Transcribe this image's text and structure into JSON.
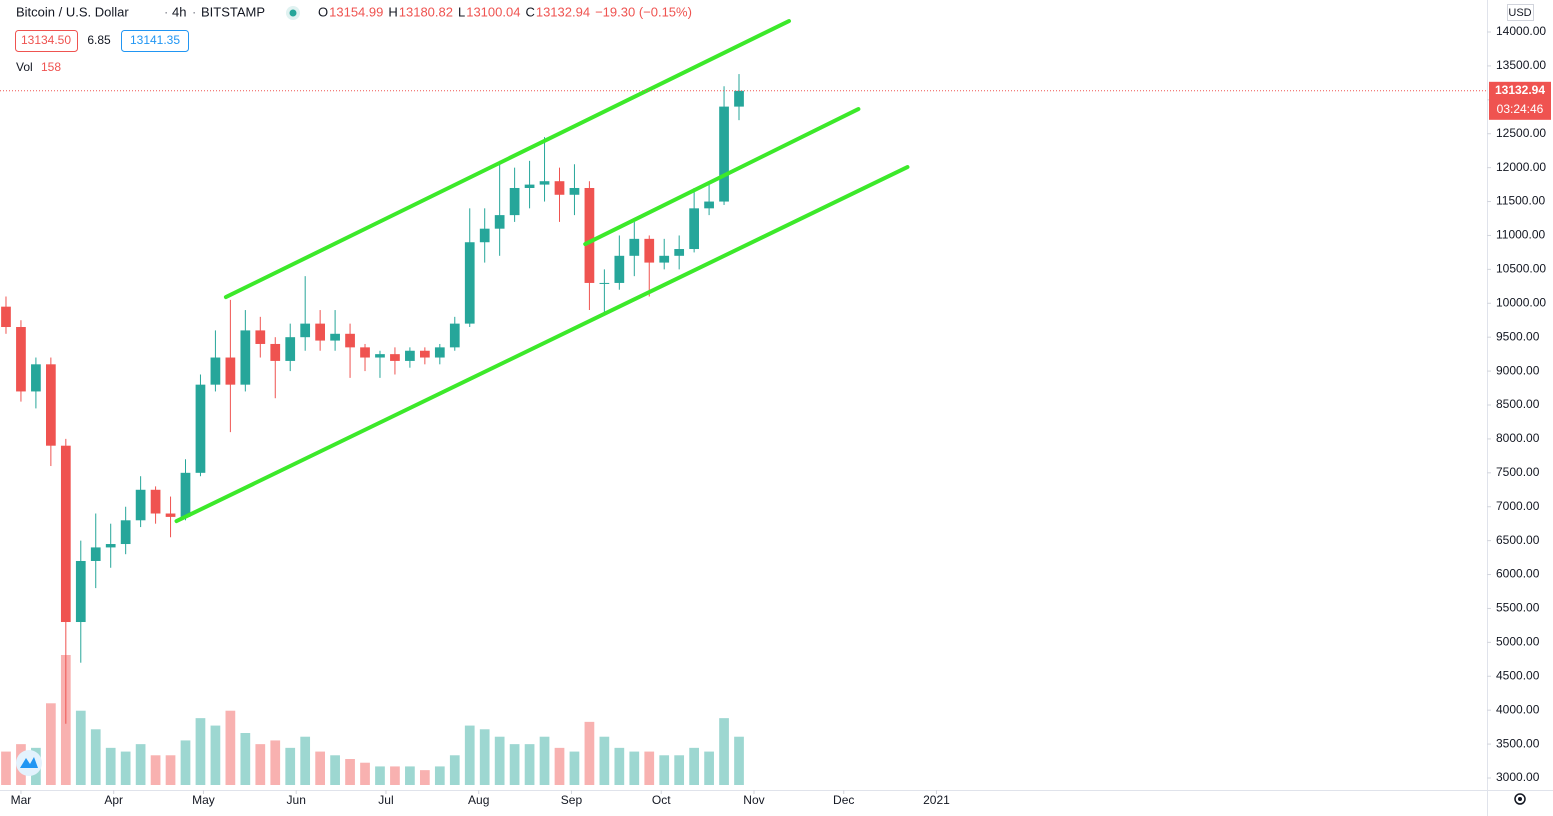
{
  "header": {
    "symbol": "Bitcoin / U.S. Dollar",
    "interval": "4h",
    "exchange": "BITSTAMP",
    "ohlc": [
      {
        "label": "O",
        "value": "13154.99"
      },
      {
        "label": "H",
        "value": "13180.82"
      },
      {
        "label": "L",
        "value": "13100.04"
      },
      {
        "label": "C",
        "value": "13132.94"
      }
    ],
    "change": "−19.30 (−0.15%)",
    "bid": "13134.50",
    "spread": "6.85",
    "ask": "13141.35",
    "volume_label": "Vol",
    "volume_value": "158",
    "currency": "USD",
    "last_price": "13132.94",
    "countdown": "03:24:46"
  },
  "chart_data": {
    "type": "candlestick",
    "x": [
      -5,
      0,
      5,
      10,
      15,
      20,
      25,
      30,
      35,
      40,
      45,
      50,
      55,
      60,
      65,
      70,
      75,
      80,
      85,
      90,
      95,
      100,
      105,
      110,
      115,
      120,
      125,
      130,
      135,
      140,
      145,
      150,
      155,
      160,
      165,
      170,
      175,
      180,
      185,
      190,
      195,
      200,
      205,
      210,
      215,
      220,
      225,
      230,
      235,
      240
    ],
    "open": [
      9950,
      9650,
      8700,
      9100,
      7900,
      5300,
      6200,
      6400,
      6450,
      6800,
      7250,
      6900,
      6850,
      7500,
      8800,
      9200,
      8800,
      9600,
      9400,
      9150,
      9500,
      9700,
      9450,
      9550,
      9350,
      9200,
      9250,
      9150,
      9300,
      9200,
      9350,
      9700,
      10900,
      11100,
      11300,
      11700,
      11750,
      11800,
      11600,
      11700,
      10300,
      10300,
      10700,
      10950,
      10600,
      10700,
      10800,
      11400,
      11500,
      12900
    ],
    "high": [
      10100,
      9750,
      9200,
      9200,
      8000,
      6500,
      6900,
      6750,
      7000,
      7450,
      7300,
      7150,
      7700,
      8950,
      9600,
      10050,
      9900,
      9800,
      9500,
      9700,
      10400,
      9900,
      9900,
      9700,
      9400,
      9300,
      9350,
      9350,
      9350,
      9400,
      9800,
      11400,
      11400,
      12100,
      12000,
      12100,
      12450,
      12000,
      12050,
      11800,
      10500,
      11000,
      11200,
      11000,
      10950,
      11000,
      11700,
      11800,
      13200,
      13380
    ],
    "low": [
      9550,
      8550,
      8450,
      7600,
      3800,
      4700,
      5800,
      6100,
      6300,
      6700,
      6750,
      6550,
      6800,
      7450,
      8700,
      8100,
      8700,
      9200,
      8600,
      9000,
      9300,
      9300,
      9300,
      8900,
      9000,
      8900,
      8950,
      9050,
      9100,
      9100,
      9300,
      9650,
      10600,
      10700,
      11200,
      11400,
      11500,
      11200,
      11300,
      9900,
      9850,
      10200,
      10400,
      10100,
      10500,
      10500,
      10750,
      11300,
      11450,
      12700
    ],
    "close": [
      9650,
      8700,
      9100,
      7900,
      5300,
      6200,
      6400,
      6450,
      6800,
      7250,
      6900,
      6850,
      7500,
      8800,
      9200,
      8800,
      9600,
      9400,
      9150,
      9500,
      9700,
      9450,
      9550,
      9350,
      9200,
      9250,
      9150,
      9300,
      9200,
      9350,
      9700,
      10900,
      11100,
      11300,
      11700,
      11750,
      11800,
      11600,
      11700,
      10300,
      10300,
      10700,
      10950,
      10600,
      10700,
      10800,
      11400,
      11500,
      12900,
      13132.94
    ],
    "volume": [
      900,
      1100,
      1000,
      2200,
      3500,
      2000,
      1500,
      1000,
      900,
      1100,
      800,
      800,
      1200,
      1800,
      1600,
      2000,
      1400,
      1100,
      1200,
      1000,
      1300,
      900,
      800,
      700,
      600,
      500,
      500,
      500,
      400,
      500,
      800,
      1600,
      1500,
      1300,
      1100,
      1100,
      1300,
      1000,
      900,
      1700,
      1300,
      1000,
      900,
      900,
      800,
      800,
      1000,
      900,
      1800,
      1300
    ],
    "up_color": "#26a69a",
    "down_color": "#ef5350",
    "trendlines": [
      {
        "x": [
          68.5,
          256.7
        ],
        "y": [
          10091,
          14162
        ]
      },
      {
        "x": [
          188.6,
          279.9
        ],
        "y": [
          10873,
          12864
        ]
      },
      {
        "x": [
          52,
          296.3
        ],
        "y": [
          6788,
          12009
        ]
      }
    ],
    "trendline_color": "#3ce92a",
    "xlim": [
      -7,
      490
    ],
    "xticks": [
      {
        "value": 0,
        "label": "Mar"
      },
      {
        "value": 31,
        "label": "Apr"
      },
      {
        "value": 61,
        "label": "May"
      },
      {
        "value": 92,
        "label": "Jun"
      },
      {
        "value": 122,
        "label": "Jul"
      },
      {
        "value": 153,
        "label": "Aug"
      },
      {
        "value": 184,
        "label": "Sep"
      },
      {
        "value": 214,
        "label": "Oct"
      },
      {
        "value": 245,
        "label": "Nov"
      },
      {
        "value": 275,
        "label": "Dec"
      },
      {
        "value": 306,
        "label": "2021"
      }
    ],
    "ylim": [
      2823,
      14472
    ],
    "yticks": [
      {
        "value": 3000,
        "label": "3000.00"
      },
      {
        "value": 3500,
        "label": "3500.00"
      },
      {
        "value": 4000,
        "label": "4000.00"
      },
      {
        "value": 4500,
        "label": "4500.00"
      },
      {
        "value": 5000,
        "label": "5000.00"
      },
      {
        "value": 5500,
        "label": "5500.00"
      },
      {
        "value": 6000,
        "label": "6000.00"
      },
      {
        "value": 6500,
        "label": "6500.00"
      },
      {
        "value": 7000,
        "label": "7000.00"
      },
      {
        "value": 7500,
        "label": "7500.00"
      },
      {
        "value": 8000,
        "label": "8000.00"
      },
      {
        "value": 8500,
        "label": "8500.00"
      },
      {
        "value": 9000,
        "label": "9000.00"
      },
      {
        "value": 9500,
        "label": "9500.00"
      },
      {
        "value": 10000,
        "label": "10000.00"
      },
      {
        "value": 10500,
        "label": "10500.00"
      },
      {
        "value": 11000,
        "label": "11000.00"
      },
      {
        "value": 11500,
        "label": "11500.00"
      },
      {
        "value": 12000,
        "label": "12000.00"
      },
      {
        "value": 12500,
        "label": "12500.00"
      },
      {
        "value": 13000,
        "label": "13000.00"
      },
      {
        "value": 13500,
        "label": "13500.00"
      },
      {
        "value": 14000,
        "label": "14000.00"
      }
    ],
    "last_value": 13132.94
  }
}
